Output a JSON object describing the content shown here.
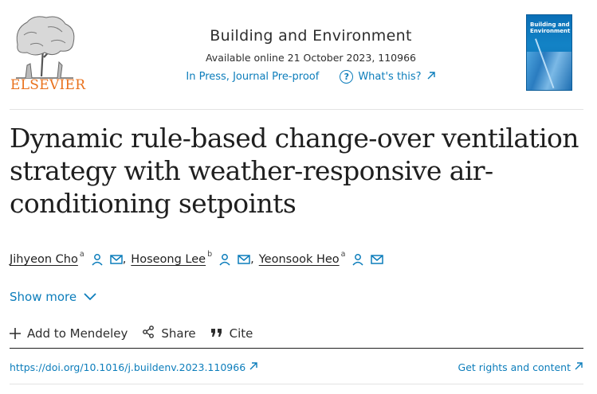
{
  "publisher": {
    "wordmark": "ELSEVIER",
    "brand_color": "#e9711c"
  },
  "journal": {
    "title": "Building and Environment",
    "available": "Available online 21 October 2023, 110966",
    "status": "In Press, Journal Pre-proof",
    "whats_this": "What's this?",
    "cover_title": "Building and Environment"
  },
  "article": {
    "title": "Dynamic rule-based change-over ventilation strategy with weather-responsive air-conditioning setpoints",
    "authors": [
      {
        "name": "Jihyeon Cho",
        "affiliation": "a"
      },
      {
        "name": "Hoseong Lee",
        "affiliation": "b"
      },
      {
        "name": "Yeonsook Heo",
        "affiliation": "a"
      }
    ],
    "show_more": "Show more"
  },
  "toolbar": {
    "add_mendeley": "Add to Mendeley",
    "share": "Share",
    "cite": "Cite"
  },
  "links": {
    "doi": "https://doi.org/10.1016/j.buildenv.2023.110966",
    "rights": "Get rights and content"
  },
  "colors": {
    "link": "#0c7dbb",
    "text": "#1f1f1f"
  }
}
